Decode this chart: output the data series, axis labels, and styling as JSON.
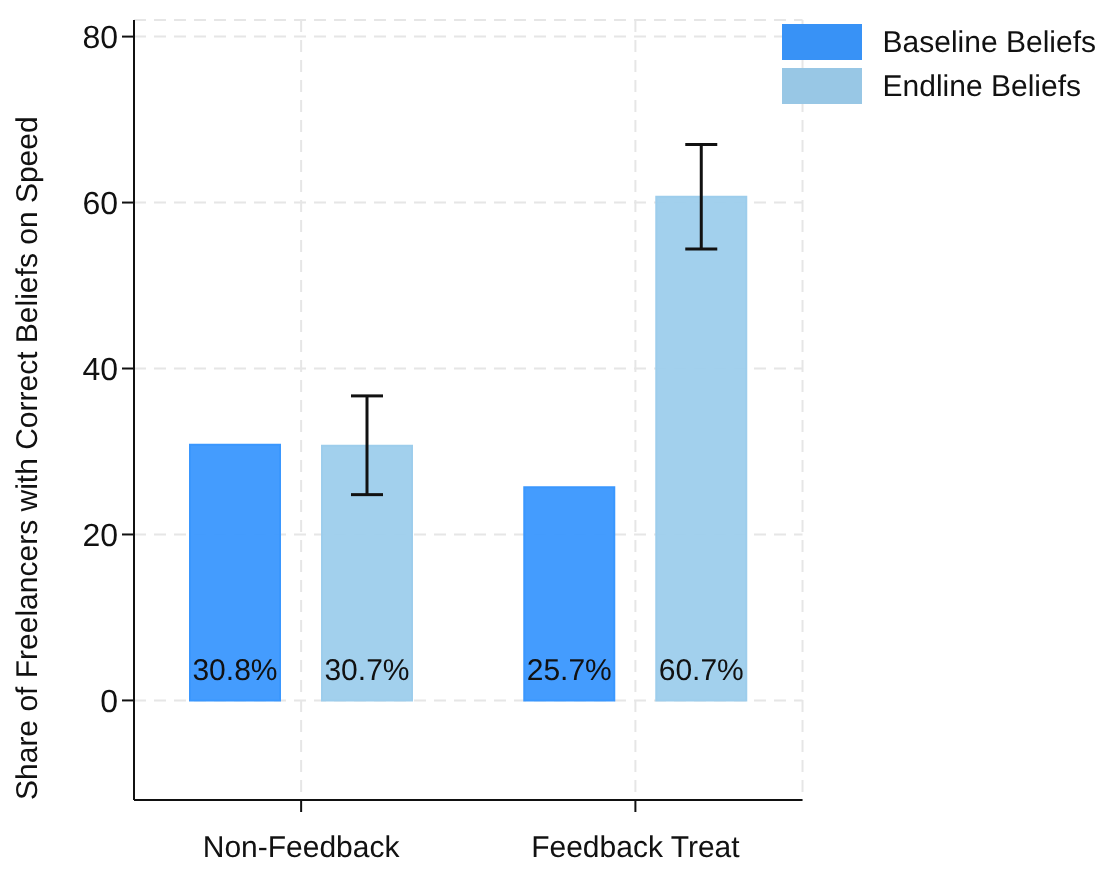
{
  "chart_data": {
    "type": "bar",
    "ylabel": "Share of Freelancers with Correct Beliefs on Speed",
    "categories": [
      "Non-Feedback",
      "Feedback Treat"
    ],
    "series": [
      {
        "name": "Baseline Beliefs",
        "color": "#3a97fe",
        "values": [
          30.8,
          25.7
        ],
        "value_labels": [
          "30.8%",
          "25.7%"
        ]
      },
      {
        "name": "Endline Beliefs",
        "color": "#9dcdec",
        "values": [
          30.7,
          60.7
        ],
        "value_labels": [
          "30.7%",
          "60.7%"
        ],
        "errors": [
          [
            24.8,
            36.7
          ],
          [
            54.4,
            67.0
          ]
        ]
      }
    ],
    "ylim": [
      -12,
      82
    ],
    "yticks": [
      0,
      20,
      40,
      60,
      80
    ],
    "grid": true,
    "legend": "top right"
  }
}
